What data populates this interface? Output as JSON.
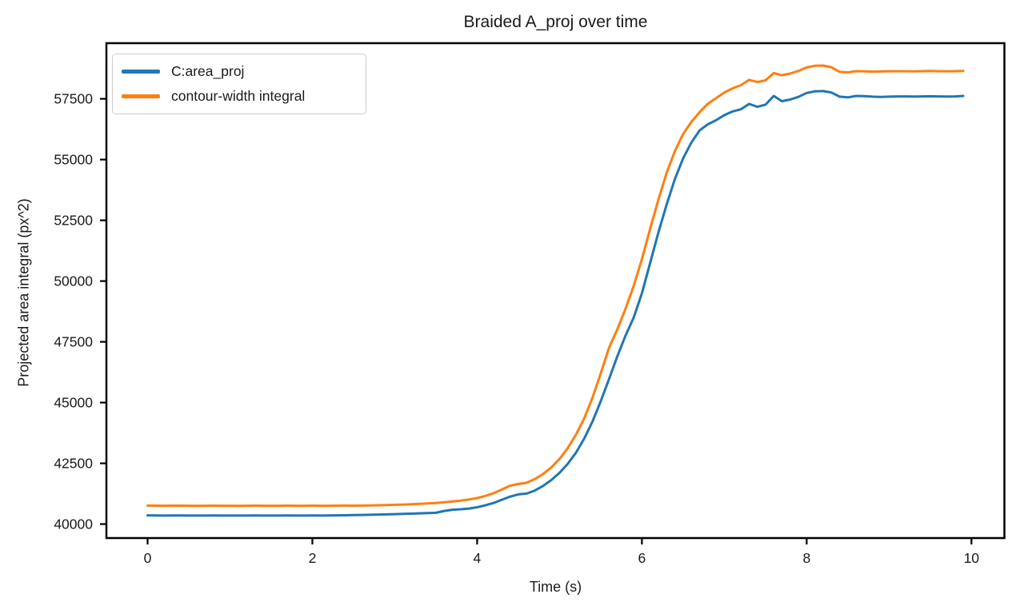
{
  "chart_data": {
    "type": "line",
    "title": "Braided A_proj over time",
    "xlabel": "Time (s)",
    "ylabel": "Projected area integral (px^2)",
    "grid": false,
    "legend_position": "upper-left",
    "xlim": [
      -0.5,
      10.4
    ],
    "ylim": [
      39425,
      59790
    ],
    "x_ticks": [
      0,
      2,
      4,
      6,
      8,
      10
    ],
    "y_ticks": [
      40000,
      42500,
      45000,
      47500,
      50000,
      52500,
      55000,
      57500
    ],
    "axis_color": "#000000",
    "text_color": "#1a1a1a",
    "x": [
      0.0,
      0.1,
      0.2,
      0.3,
      0.4,
      0.5,
      0.6,
      0.7,
      0.8,
      0.9,
      1.0,
      1.1,
      1.2,
      1.3,
      1.4,
      1.5,
      1.6,
      1.7,
      1.8,
      1.9,
      2.0,
      2.1,
      2.2,
      2.3,
      2.4,
      2.5,
      2.6,
      2.7,
      2.8,
      2.9,
      3.0,
      3.1,
      3.2,
      3.3,
      3.4,
      3.5,
      3.6,
      3.7,
      3.8,
      3.9,
      4.0,
      4.1,
      4.2,
      4.3,
      4.4,
      4.5,
      4.6,
      4.7,
      4.8,
      4.9,
      5.0,
      5.1,
      5.2,
      5.3,
      5.4,
      5.5,
      5.6,
      5.7,
      5.8,
      5.9,
      6.0,
      6.1,
      6.2,
      6.3,
      6.4,
      6.5,
      6.6,
      6.7,
      6.8,
      6.9,
      7.0,
      7.1,
      7.2,
      7.3,
      7.4,
      7.5,
      7.6,
      7.7,
      7.8,
      7.9,
      8.0,
      8.1,
      8.2,
      8.3,
      8.4,
      8.5,
      8.6,
      8.7,
      8.8,
      8.9,
      9.0,
      9.1,
      9.2,
      9.3,
      9.4,
      9.5,
      9.6,
      9.7,
      9.8,
      9.9
    ],
    "series": [
      {
        "name": "C:area_proj",
        "color": "#1f77b4",
        "values": [
          40360,
          40355,
          40350,
          40352,
          40355,
          40350,
          40348,
          40350,
          40353,
          40351,
          40350,
          40348,
          40350,
          40352,
          40350,
          40349,
          40350,
          40352,
          40351,
          40350,
          40352,
          40350,
          40353,
          40358,
          40362,
          40368,
          40375,
          40383,
          40392,
          40400,
          40410,
          40420,
          40430,
          40440,
          40450,
          40465,
          40540,
          40590,
          40610,
          40640,
          40690,
          40770,
          40870,
          41000,
          41130,
          41220,
          41255,
          41380,
          41570,
          41810,
          42110,
          42480,
          42940,
          43520,
          44220,
          45050,
          45960,
          46890,
          47750,
          48500,
          49500,
          50750,
          52000,
          53150,
          54200,
          55050,
          55700,
          56200,
          56450,
          56620,
          56830,
          56980,
          57070,
          57290,
          57170,
          57260,
          57620,
          57400,
          57470,
          57580,
          57740,
          57810,
          57820,
          57760,
          57590,
          57560,
          57620,
          57610,
          57590,
          57580,
          57590,
          57600,
          57598,
          57592,
          57600,
          57606,
          57600,
          57595,
          57600,
          57620
        ]
      },
      {
        "name": "contour-width integral",
        "color": "#ff7f0e",
        "values": [
          40760,
          40758,
          40755,
          40756,
          40758,
          40755,
          40752,
          40754,
          40756,
          40755,
          40753,
          40752,
          40754,
          40756,
          40755,
          40753,
          40754,
          40756,
          40755,
          40754,
          40756,
          40753,
          40755,
          40758,
          40760,
          40758,
          40762,
          40768,
          40775,
          40783,
          40792,
          40802,
          40815,
          40830,
          40848,
          40868,
          40900,
          40930,
          40965,
          41010,
          41070,
          41160,
          41270,
          41420,
          41580,
          41650,
          41700,
          41850,
          42060,
          42330,
          42680,
          43130,
          43680,
          44350,
          45200,
          46200,
          47250,
          48000,
          48850,
          49800,
          50900,
          52150,
          53350,
          54450,
          55350,
          56050,
          56550,
          56950,
          57300,
          57530,
          57760,
          57930,
          58060,
          58280,
          58190,
          58260,
          58560,
          58470,
          58540,
          58650,
          58790,
          58860,
          58870,
          58800,
          58610,
          58590,
          58640,
          58630,
          58620,
          58625,
          58635,
          58640,
          58636,
          58630,
          58640,
          58645,
          58640,
          58636,
          58640,
          58650
        ]
      }
    ]
  }
}
